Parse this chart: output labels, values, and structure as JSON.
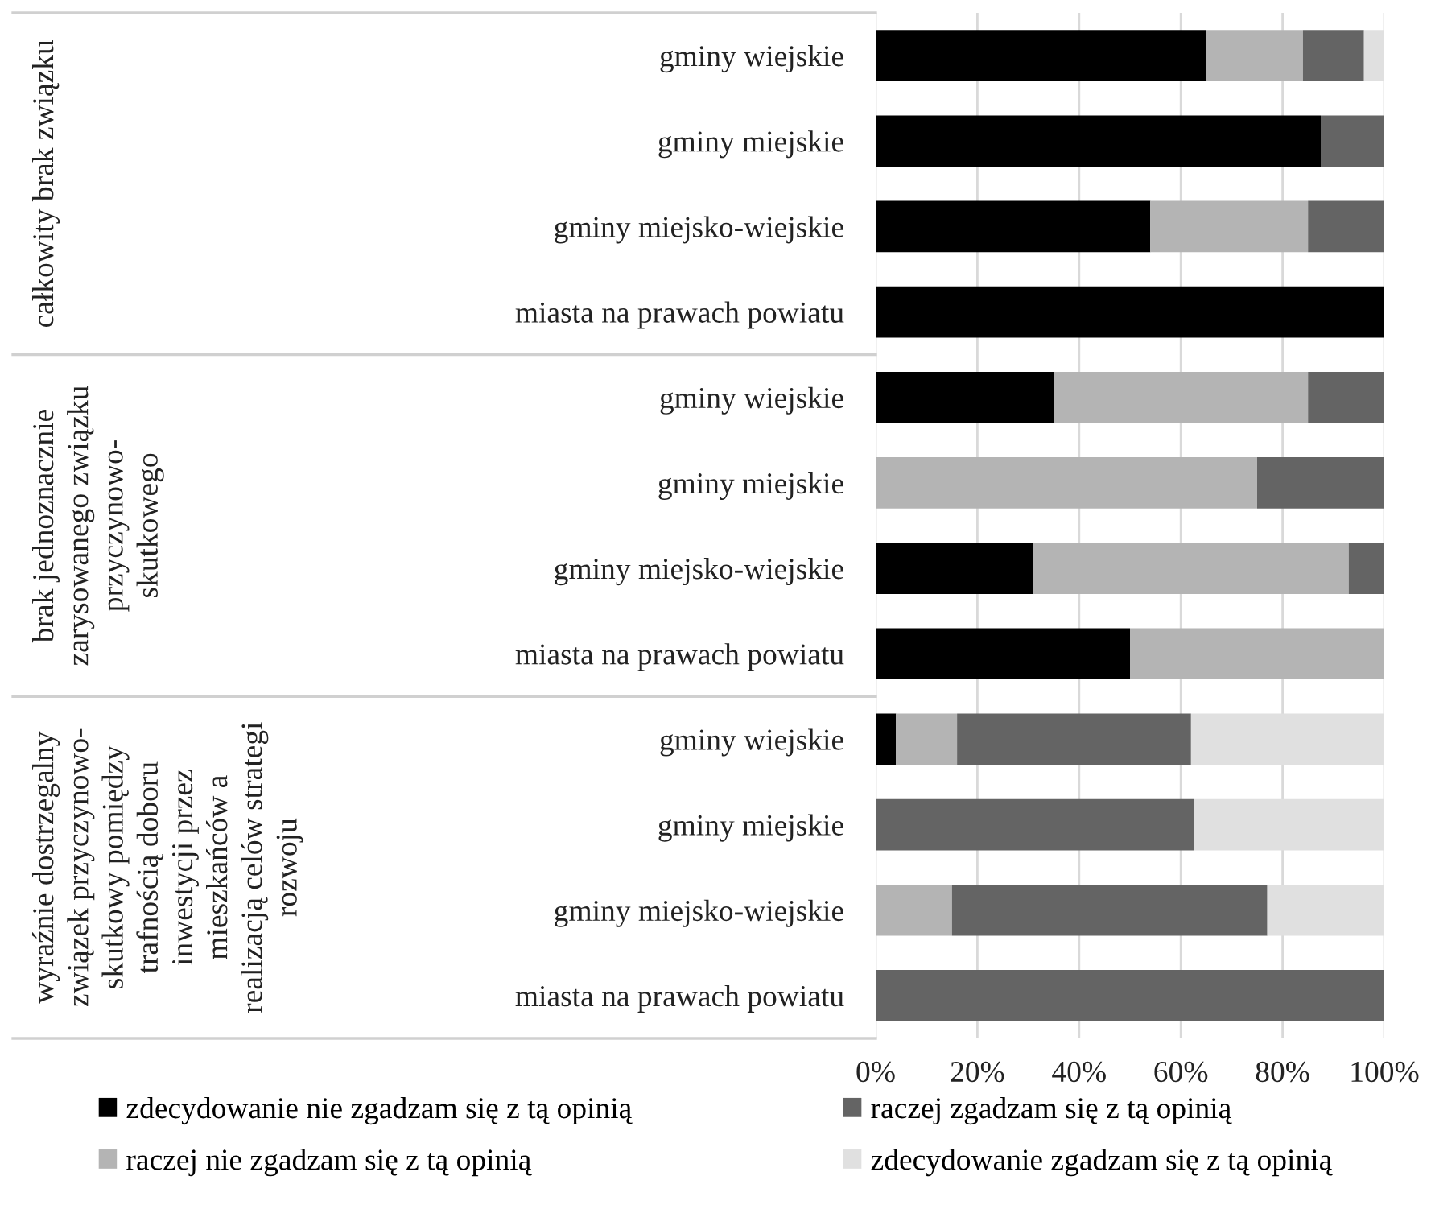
{
  "chart_data": {
    "type": "bar",
    "orientation": "horizontal",
    "stacked": true,
    "categories": [
      "gminy wiejskie",
      "gminy miejskie",
      "gminy miejsko-wiejskie",
      "miasta na prawach powiatu",
      "gminy wiejskie",
      "gminy miejskie",
      "gminy miejsko-wiejskie",
      "miasta na prawach powiatu",
      "gminy wiejskie",
      "gminy miejskie",
      "gminy miejsko-wiejskie",
      "miasta na prawach powiatu"
    ],
    "series": [
      {
        "name": "zdecydowanie nie zgadzam się z tą opinią",
        "color": "#000000",
        "values": [
          65,
          87.5,
          54,
          100,
          35,
          0,
          31,
          50,
          4,
          0,
          0,
          0
        ]
      },
      {
        "name": "raczej nie zgadzam się z tą opinią",
        "color": "#b4b4b4",
        "values": [
          19,
          0,
          31,
          0,
          50,
          75,
          62,
          50,
          12,
          0,
          15,
          0
        ]
      },
      {
        "name": "raczej zgadzam się z tą opinią",
        "color": "#646464",
        "values": [
          12,
          12.5,
          15,
          0,
          15,
          25,
          7,
          0,
          46,
          62.5,
          62,
          100
        ]
      },
      {
        "name": "zdecydowanie zgadzam się z tą opinią",
        "color": "#e0e0e0",
        "values": [
          4,
          0,
          0,
          0,
          0,
          0,
          0,
          0,
          38,
          37.5,
          23,
          0
        ]
      }
    ],
    "annotations": [
      "całkowity brak związku",
      "brak jednoznacznie\nzarysowanego związku\nprzyczynowo-\nskutkowego",
      "wyraźnie dostrzegalny\nzwiązek przyczynowo-\nskutkowy pomiędzy\ntrafnością doboru\ninwestycji przez\nmieszkańców a\nrealizacją celów strategi\nrozwoju"
    ],
    "xlim": [
      0,
      100
    ],
    "xticks": [
      {
        "value": 0,
        "label": "0%"
      },
      {
        "value": 20,
        "label": "20%"
      },
      {
        "value": 40,
        "label": "40%"
      },
      {
        "value": 60,
        "label": "60%"
      },
      {
        "value": 80,
        "label": "80%"
      },
      {
        "value": 100,
        "label": "100%"
      }
    ],
    "grid": "x",
    "legend": "bottom"
  }
}
